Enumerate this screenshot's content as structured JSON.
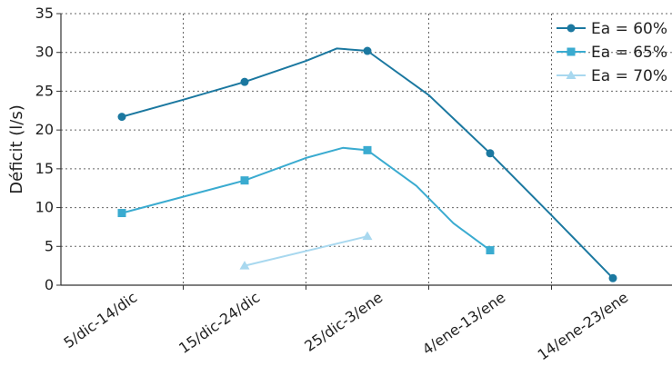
{
  "chart_data": {
    "type": "line",
    "title": "",
    "xlabel": "",
    "ylabel": "Déficit (l/s)",
    "ylim": [
      0,
      35
    ],
    "yticks": [
      0,
      5,
      10,
      15,
      20,
      25,
      30,
      35
    ],
    "categories": [
      "5/dic-14/dic",
      "15/dic-24/dic",
      "25/dic-3/ene",
      "4/ene-13/ene",
      "14/ene-23/ene"
    ],
    "grid": "dotted",
    "legend_position": "top-right",
    "series": [
      {
        "name": "Ea = 60%",
        "color": "#1b78a0",
        "marker": "circle",
        "points": [
          [
            0,
            21.7
          ],
          [
            0.5,
            23.9
          ],
          [
            1,
            26.2
          ],
          [
            1.5,
            28.9
          ],
          [
            1.75,
            30.5
          ],
          [
            2,
            30.2
          ],
          [
            2.5,
            24.5
          ],
          [
            3,
            17.0
          ],
          [
            3.5,
            9.0
          ],
          [
            4,
            0.9
          ]
        ],
        "values": [
          21.7,
          26.2,
          30.2,
          17.0,
          0.9
        ]
      },
      {
        "name": "Ea = 65%",
        "color": "#3aabd0",
        "marker": "square",
        "points": [
          [
            0,
            9.3
          ],
          [
            0.5,
            11.4
          ],
          [
            1,
            13.5
          ],
          [
            1.5,
            16.4
          ],
          [
            1.8,
            17.7
          ],
          [
            2,
            17.4
          ],
          [
            2.4,
            12.8
          ],
          [
            2.7,
            8.0
          ],
          [
            3,
            4.5
          ]
        ],
        "values": [
          9.3,
          13.5,
          17.4,
          4.5,
          null
        ]
      },
      {
        "name": "Ea = 70%",
        "color": "#a8d8ef",
        "marker": "triangle",
        "points": [
          [
            1,
            2.5
          ],
          [
            2,
            6.3
          ]
        ],
        "values": [
          null,
          2.5,
          6.3,
          null,
          null
        ]
      }
    ]
  }
}
